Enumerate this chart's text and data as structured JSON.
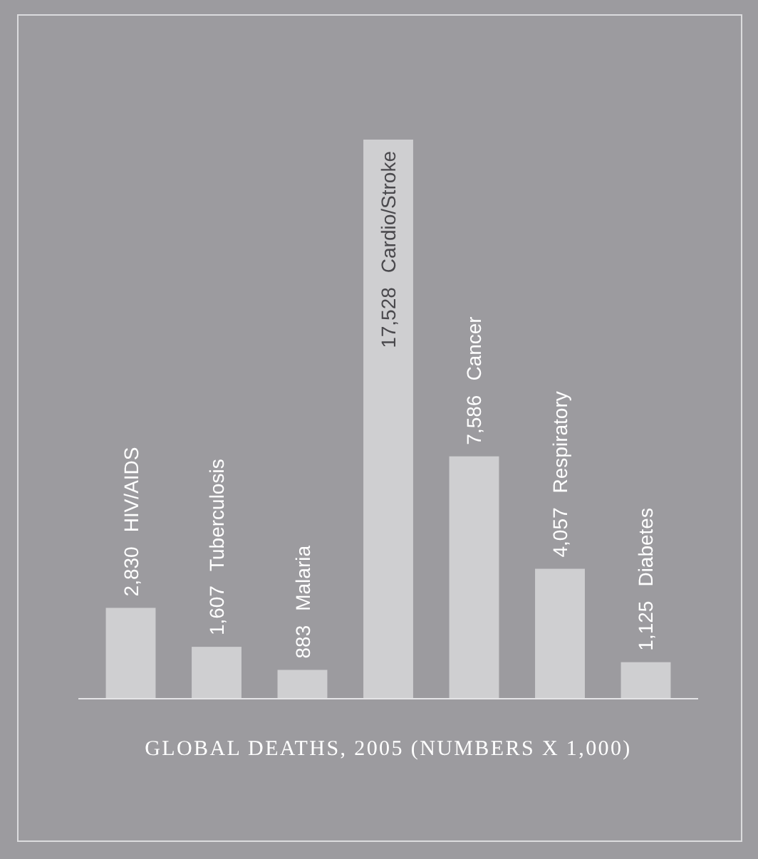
{
  "chart_data": {
    "type": "bar",
    "title": "GLOBAL DEATHS, 2005 (NUMBERS X 1,000)",
    "categories": [
      "HIV/AIDS",
      "Tuberculosis",
      "Malaria",
      "Cardio/Stroke",
      "Cancer",
      "Respiratory",
      "Diabetes"
    ],
    "values": [
      2830,
      1607,
      883,
      17528,
      7586,
      4057,
      1125
    ],
    "value_labels": [
      "2,830",
      "1,607",
      "883",
      "17,528",
      "7,586",
      "4,057",
      "1,125"
    ],
    "color": "#cfcfd1"
  }
}
